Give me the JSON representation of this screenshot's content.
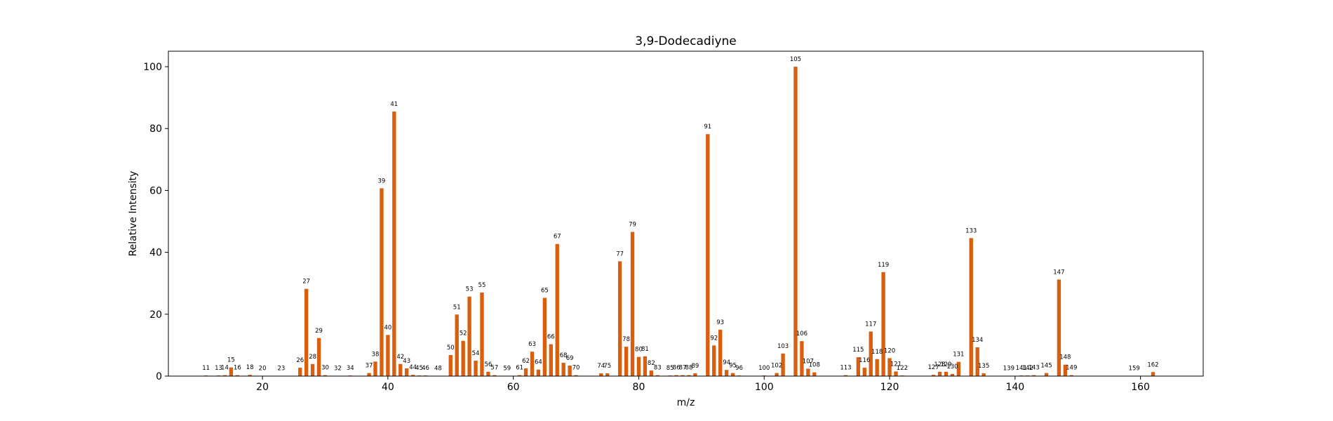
{
  "chart_data": {
    "type": "bar",
    "title": "3,9-Dodecadiyne",
    "xlabel": "m/z",
    "ylabel": "Relative Intensity",
    "xlim": [
      5,
      170
    ],
    "ylim": [
      0,
      105
    ],
    "xticks": [
      20,
      40,
      60,
      80,
      100,
      120,
      140,
      160
    ],
    "yticks": [
      0,
      20,
      40,
      60,
      80,
      100
    ],
    "bar_color": "#d95f0e",
    "grid": false,
    "x": [
      11,
      13,
      14,
      15,
      16,
      18,
      20,
      23,
      26,
      27,
      28,
      29,
      30,
      32,
      34,
      37,
      38,
      39,
      40,
      41,
      42,
      43,
      44,
      45,
      46,
      48,
      50,
      51,
      52,
      53,
      54,
      55,
      56,
      57,
      59,
      61,
      62,
      63,
      64,
      65,
      66,
      67,
      68,
      69,
      70,
      74,
      75,
      77,
      78,
      79,
      80,
      81,
      82,
      83,
      85,
      86,
      87,
      88,
      89,
      91,
      92,
      93,
      94,
      95,
      96,
      100,
      102,
      103,
      105,
      106,
      107,
      108,
      113,
      115,
      116,
      117,
      118,
      119,
      120,
      121,
      122,
      127,
      128,
      129,
      130,
      131,
      133,
      134,
      135,
      139,
      141,
      142,
      143,
      145,
      147,
      148,
      149,
      159,
      162
    ],
    "values": [
      0.2,
      0.2,
      0.3,
      2.8,
      0.3,
      0.4,
      0.1,
      0.1,
      2.7,
      28.2,
      3.9,
      12.3,
      0.3,
      0.1,
      0.2,
      1.0,
      4.7,
      60.7,
      13.3,
      85.5,
      3.9,
      2.5,
      0.4,
      0.2,
      0.2,
      0.1,
      6.8,
      19.9,
      11.4,
      25.7,
      5.0,
      27.0,
      1.4,
      0.3,
      0.1,
      0.3,
      2.5,
      7.9,
      2.1,
      25.3,
      10.3,
      42.7,
      4.3,
      3.4,
      0.3,
      0.9,
      0.9,
      37.1,
      9.5,
      46.6,
      6.2,
      6.4,
      1.8,
      0.3,
      0.2,
      0.3,
      0.3,
      0.3,
      0.9,
      78.2,
      9.9,
      15.0,
      2.0,
      1.0,
      0.2,
      0.2,
      1.0,
      7.3,
      100.0,
      11.3,
      2.4,
      1.2,
      0.3,
      6.1,
      2.7,
      14.4,
      5.5,
      33.6,
      5.8,
      1.5,
      0.2,
      0.4,
      1.4,
      1.4,
      0.7,
      4.6,
      44.6,
      9.3,
      0.9,
      0.1,
      0.2,
      0.2,
      0.3,
      1.0,
      31.2,
      3.7,
      0.3,
      0.1,
      1.3
    ]
  }
}
